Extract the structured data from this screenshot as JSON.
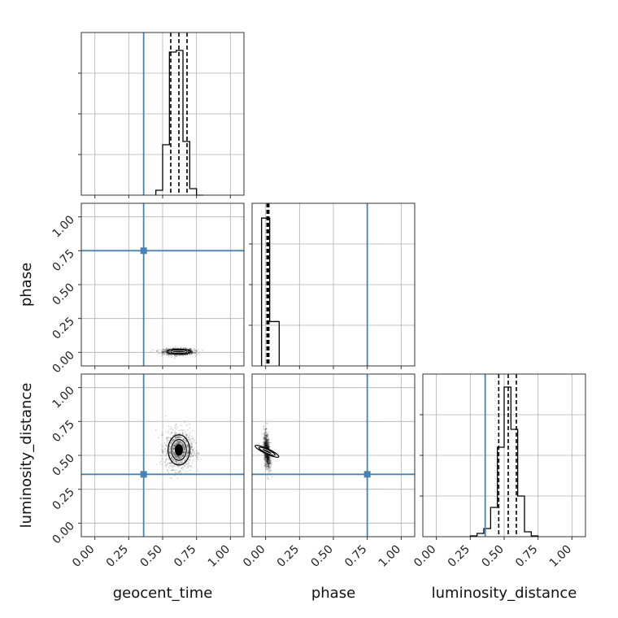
{
  "chart_data": {
    "type": "corner",
    "parameters": [
      "geocent_time",
      "phase",
      "luminosity_distance"
    ],
    "axis_range": [
      -0.1,
      1.1
    ],
    "ticks": [
      0,
      0.25,
      0.5,
      0.75,
      1.0
    ],
    "tick_labels": [
      "0.00",
      "0.25",
      "0.50",
      "0.75",
      "1.00"
    ],
    "truth_color": "#4682b4",
    "grid": true,
    "truths": {
      "geocent_time": 0.36,
      "phase": 0.75,
      "luminosity_distance": 0.36
    },
    "histograms": [
      {
        "parameter": "geocent_time",
        "bin_edges": [
          0.45,
          0.5,
          0.55,
          0.6,
          0.65,
          0.7,
          0.75,
          0.8
        ],
        "counts": [
          0.03,
          0.31,
          0.88,
          0.89,
          0.33,
          0.04,
          0
        ],
        "ymax": 1.0,
        "quantiles": [
          0.56,
          0.62,
          0.68
        ]
      },
      {
        "parameter": "phase",
        "bin_edges": [
          -0.03,
          0.03,
          0.1
        ],
        "counts": [
          1.0,
          0.3
        ],
        "ymax": 1.1,
        "quantiles": [
          0.01,
          0.017,
          0.024
        ]
      },
      {
        "parameter": "luminosity_distance",
        "bin_edges": [
          0.25,
          0.3,
          0.35,
          0.4,
          0.45,
          0.5,
          0.55,
          0.6,
          0.65,
          0.7,
          0.75
        ],
        "counts": [
          0.005,
          0.02,
          0.05,
          0.18,
          0.55,
          0.92,
          0.66,
          0.25,
          0.03,
          0.005
        ],
        "ymax": 1.0,
        "quantiles": [
          0.46,
          0.53,
          0.59
        ]
      }
    ],
    "scatter_2d": [
      {
        "x": "geocent_time",
        "y": "phase",
        "center": [
          0.62,
          0.005
        ],
        "sigma": [
          0.055,
          0.012
        ],
        "n": 1100
      },
      {
        "x": "geocent_time",
        "y": "luminosity_distance",
        "center": [
          0.62,
          0.54
        ],
        "sigma": [
          0.05,
          0.07
        ],
        "n": 1100
      },
      {
        "x": "phase",
        "y": "luminosity_distance",
        "center": [
          0.01,
          0.53
        ],
        "sigma": [
          0.012,
          0.06
        ],
        "n": 900,
        "slope": -5
      }
    ]
  }
}
